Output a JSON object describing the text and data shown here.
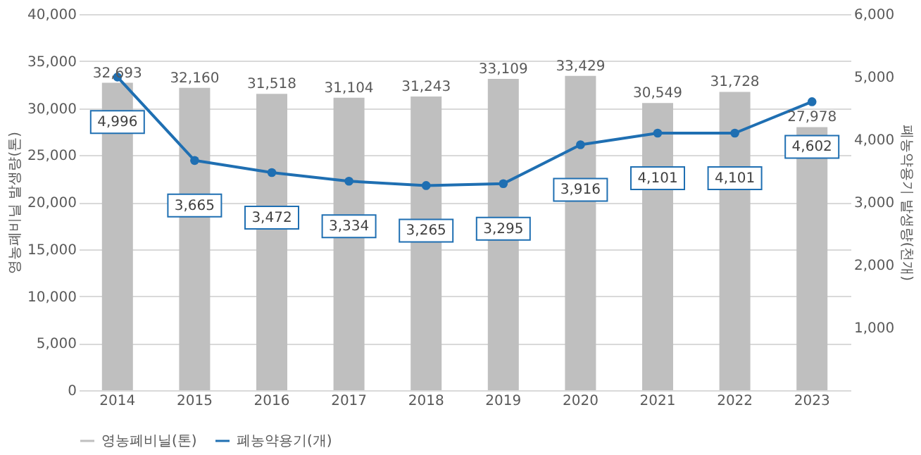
{
  "chart_data": {
    "type": "bar",
    "categories": [
      "2014",
      "2015",
      "2016",
      "2017",
      "2018",
      "2019",
      "2020",
      "2021",
      "2022",
      "2023"
    ],
    "series": [
      {
        "name": "영농폐비닐(톤)",
        "color": "#bfbfbf",
        "values": [
          32693,
          32160,
          31518,
          31104,
          31243,
          33109,
          33429,
          30549,
          31728,
          27978
        ],
        "value_labels": [
          "32,693",
          "32,160",
          "31,518",
          "31,104",
          "31,243",
          "33,109",
          "33,429",
          "30,549",
          "31,728",
          "27,978"
        ]
      },
      {
        "name": "폐농약용기(개)",
        "type": "line",
        "axis": "y2",
        "color": "#1f6fb2",
        "values": [
          4996,
          3665,
          3472,
          3334,
          3265,
          3295,
          3916,
          4101,
          4101,
          4602
        ],
        "value_labels": [
          "4,996",
          "3,665",
          "3,472",
          "3,334",
          "3,265",
          "3,295",
          "3,916",
          "4,101",
          "4,101",
          "4,602"
        ]
      }
    ],
    "ylabel": "영농폐비닐 발생량(톤)",
    "y2label": "폐농약용기 발생량(천개)",
    "ylim": [
      0,
      40000
    ],
    "yticks": [
      0,
      {
        "value": 5000,
        "label": "5,000"
      },
      {
        "value": 10000,
        "label": "10,000"
      },
      {
        "value": 15000,
        "label": "15,000"
      },
      {
        "value": 20000,
        "label": "20,000"
      },
      {
        "value": 25000,
        "label": "25,000"
      },
      {
        "value": 30000,
        "label": "30,000"
      },
      {
        "value": 35000,
        "label": "35,000"
      },
      {
        "value": 40000,
        "label": "40,000"
      }
    ],
    "y2lim": [
      0,
      6000
    ],
    "y2ticks": [
      {
        "value": 1000,
        "label": "1,000"
      },
      {
        "value": 2000,
        "label": "2,000"
      },
      {
        "value": 3000,
        "label": "3,000"
      },
      {
        "value": 4000,
        "label": "4,000"
      },
      {
        "value": 5000,
        "label": "5,000"
      },
      {
        "value": 6000,
        "label": "6,000"
      }
    ],
    "grid": "y",
    "legend": "bottom",
    "marker": "circle",
    "line_style": "solid"
  }
}
